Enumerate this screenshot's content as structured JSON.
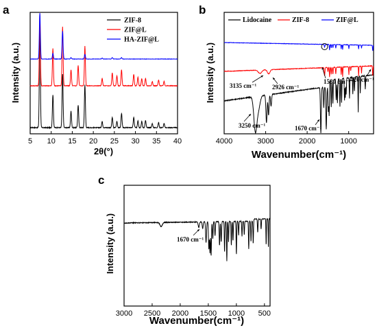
{
  "chart_data": [
    {
      "panel": "a",
      "type": "line",
      "xlabel": "2θ(°)",
      "ylabel": "Intensity (a.u.)",
      "xlim": [
        5,
        40
      ],
      "xticks": [
        "5",
        "10",
        "15",
        "20",
        "25",
        "30",
        "35",
        "40"
      ],
      "legend_position": "top-right",
      "series": [
        {
          "name": "ZIF-8",
          "color": "#000000",
          "offset": 0.0,
          "scale": 1.0,
          "peaks": [
            [
              7.3,
              1.0
            ],
            [
              10.4,
              0.32
            ],
            [
              12.7,
              0.52
            ],
            [
              14.7,
              0.16
            ],
            [
              16.4,
              0.22
            ],
            [
              18.0,
              0.42
            ],
            [
              22.1,
              0.06
            ],
            [
              24.5,
              0.1
            ],
            [
              25.6,
              0.06
            ],
            [
              26.7,
              0.14
            ],
            [
              29.6,
              0.1
            ],
            [
              30.6,
              0.07
            ],
            [
              31.5,
              0.06
            ],
            [
              32.4,
              0.07
            ],
            [
              34.0,
              0.04
            ],
            [
              35.5,
              0.05
            ],
            [
              36.8,
              0.04
            ]
          ]
        },
        {
          "name": "ZIF@L",
          "color": "#ff0000",
          "offset": 1.0,
          "scale": 1.05,
          "peaks": [
            [
              7.3,
              1.0
            ],
            [
              10.4,
              0.52
            ],
            [
              12.7,
              0.82
            ],
            [
              14.7,
              0.22
            ],
            [
              16.4,
              0.28
            ],
            [
              18.0,
              0.55
            ],
            [
              22.1,
              0.1
            ],
            [
              24.5,
              0.18
            ],
            [
              25.6,
              0.14
            ],
            [
              26.7,
              0.22
            ],
            [
              29.6,
              0.16
            ],
            [
              30.6,
              0.12
            ],
            [
              31.5,
              0.1
            ],
            [
              32.4,
              0.1
            ],
            [
              34.0,
              0.06
            ],
            [
              35.5,
              0.08
            ],
            [
              36.8,
              0.06
            ]
          ]
        },
        {
          "name": "HA-ZIF@L",
          "color": "#0000ff",
          "offset": 1.95,
          "scale": 1.0,
          "peaks": [
            [
              7.3,
              1.0
            ],
            [
              10.4,
              0.12
            ],
            [
              12.7,
              0.6
            ],
            [
              14.7,
              0.03
            ],
            [
              18.0,
              0.1
            ],
            [
              22.1,
              0.02
            ],
            [
              24.5,
              0.03
            ],
            [
              26.7,
              0.03
            ]
          ]
        }
      ]
    },
    {
      "panel": "b",
      "type": "line",
      "xlabel": "Wavenumber(cm⁻¹)",
      "ylabel": "Intensity (a.u.)",
      "xlim": [
        4000,
        400
      ],
      "xticks": [
        "4000",
        "3000",
        "2000",
        "1000"
      ],
      "legend_position": "top",
      "series": [
        {
          "name": "Lidocaine",
          "color": "#000000"
        },
        {
          "name": "ZIF-8",
          "color": "#ff0000"
        },
        {
          "name": "ZIF@L",
          "color": "#0000ff"
        }
      ],
      "annotations": [
        "3135 cm⁻¹",
        "2926 cm⁻¹",
        "1580 cm⁻¹",
        "420 cm⁻¹",
        "3250 cm⁻¹",
        "1670 cm⁻¹"
      ]
    },
    {
      "panel": "c",
      "type": "line",
      "xlabel": "Wavenumber(cm⁻¹)",
      "ylabel": "Intensity (a.u.)",
      "xlim": [
        3000,
        400
      ],
      "xticks": [
        "3000",
        "2500",
        "2000",
        "1500",
        "1000",
        "500"
      ],
      "series": [
        {
          "name": "",
          "color": "#000000"
        }
      ],
      "annotations": [
        "1670 cm⁻¹"
      ]
    }
  ]
}
